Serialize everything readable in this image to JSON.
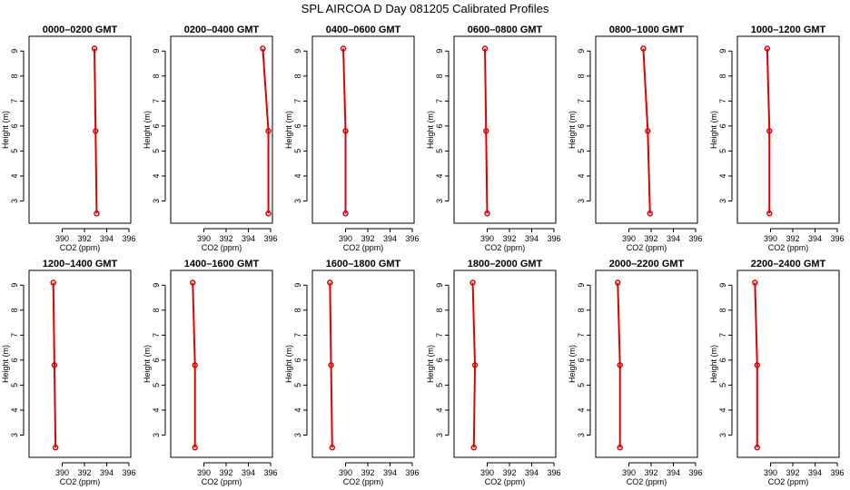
{
  "main_title": "SPL  AIRCOA D  Day 081205  Calibrated Profiles",
  "colors": {
    "series": "#dd0000",
    "axis": "#000000"
  },
  "chart_data": [
    {
      "type": "line",
      "title": "0000–0200 GMT",
      "xlabel": "CO2 (ppm)",
      "ylabel": "Height (m)",
      "xlim": [
        388,
        396
      ],
      "ylim": [
        2.4,
        9.3
      ],
      "xticks": [
        390,
        392,
        394,
        396
      ],
      "yticks": [
        3,
        4,
        5,
        6,
        7,
        8,
        9
      ],
      "x": [
        393.1,
        393.0,
        392.9
      ],
      "y": [
        2.5,
        5.8,
        9.1
      ]
    },
    {
      "type": "line",
      "title": "0200–0400 GMT",
      "xlabel": "CO2 (ppm)",
      "ylabel": "Height (m)",
      "xlim": [
        388,
        396
      ],
      "ylim": [
        2.4,
        9.3
      ],
      "xticks": [
        390,
        392,
        394,
        396
      ],
      "yticks": [
        3,
        4,
        5,
        6,
        7,
        8,
        9
      ],
      "x": [
        395.8,
        395.8,
        395.3
      ],
      "y": [
        2.5,
        5.8,
        9.1
      ]
    },
    {
      "type": "line",
      "title": "0400–0600 GMT",
      "xlabel": "CO2 (ppm)",
      "ylabel": "Height (m)",
      "xlim": [
        388,
        396
      ],
      "ylim": [
        2.4,
        9.3
      ],
      "xticks": [
        390,
        392,
        394,
        396
      ],
      "yticks": [
        3,
        4,
        5,
        6,
        7,
        8,
        9
      ],
      "x": [
        390.0,
        390.0,
        389.8
      ],
      "y": [
        2.5,
        5.8,
        9.1
      ]
    },
    {
      "type": "line",
      "title": "0600–0800 GMT",
      "xlabel": "CO2 (ppm)",
      "ylabel": "Height (m)",
      "xlim": [
        388,
        396
      ],
      "ylim": [
        2.4,
        9.3
      ],
      "xticks": [
        390,
        392,
        394,
        396
      ],
      "yticks": [
        3,
        4,
        5,
        6,
        7,
        8,
        9
      ],
      "x": [
        390.0,
        389.9,
        389.8
      ],
      "y": [
        2.5,
        5.8,
        9.1
      ]
    },
    {
      "type": "line",
      "title": "0800–1000 GMT",
      "xlabel": "CO2 (ppm)",
      "ylabel": "Height (m)",
      "xlim": [
        388,
        396
      ],
      "ylim": [
        2.4,
        9.3
      ],
      "xticks": [
        390,
        392,
        394,
        396
      ],
      "yticks": [
        3,
        4,
        5,
        6,
        7,
        8,
        9
      ],
      "x": [
        391.9,
        391.7,
        391.3
      ],
      "y": [
        2.5,
        5.8,
        9.1
      ]
    },
    {
      "type": "line",
      "title": "1000–1200 GMT",
      "xlabel": "CO2 (ppm)",
      "ylabel": "Height (m)",
      "xlim": [
        388,
        396
      ],
      "ylim": [
        2.4,
        9.3
      ],
      "xticks": [
        390,
        392,
        394,
        396
      ],
      "yticks": [
        3,
        4,
        5,
        6,
        7,
        8,
        9
      ],
      "x": [
        389.9,
        389.9,
        389.7
      ],
      "y": [
        2.5,
        5.8,
        9.1
      ]
    },
    {
      "type": "line",
      "title": "1200–1400 GMT",
      "xlabel": "CO2 (ppm)",
      "ylabel": "Height (m)",
      "xlim": [
        388,
        396
      ],
      "ylim": [
        2.4,
        9.3
      ],
      "xticks": [
        390,
        392,
        394,
        396
      ],
      "yticks": [
        3,
        4,
        5,
        6,
        7,
        8,
        9
      ],
      "x": [
        389.4,
        389.3,
        389.2
      ],
      "y": [
        2.5,
        5.8,
        9.1
      ]
    },
    {
      "type": "line",
      "title": "1400–1600 GMT",
      "xlabel": "CO2 (ppm)",
      "ylabel": "Height (m)",
      "xlim": [
        388,
        396
      ],
      "ylim": [
        2.4,
        9.3
      ],
      "xticks": [
        390,
        392,
        394,
        396
      ],
      "yticks": [
        3,
        4,
        5,
        6,
        7,
        8,
        9
      ],
      "x": [
        389.2,
        389.2,
        389.0
      ],
      "y": [
        2.5,
        5.8,
        9.1
      ]
    },
    {
      "type": "line",
      "title": "1600–1800 GMT",
      "xlabel": "CO2 (ppm)",
      "ylabel": "Height (m)",
      "xlim": [
        388,
        396
      ],
      "ylim": [
        2.4,
        9.3
      ],
      "xticks": [
        390,
        392,
        394,
        396
      ],
      "yticks": [
        3,
        4,
        5,
        6,
        7,
        8,
        9
      ],
      "x": [
        388.8,
        388.7,
        388.6
      ],
      "y": [
        2.5,
        5.8,
        9.1
      ]
    },
    {
      "type": "line",
      "title": "1800–2000 GMT",
      "xlabel": "CO2 (ppm)",
      "ylabel": "Height (m)",
      "xlim": [
        388,
        396
      ],
      "ylim": [
        2.4,
        9.3
      ],
      "xticks": [
        390,
        392,
        394,
        396
      ],
      "yticks": [
        3,
        4,
        5,
        6,
        7,
        8,
        9
      ],
      "x": [
        388.8,
        388.9,
        388.7
      ],
      "y": [
        2.5,
        5.8,
        9.1
      ]
    },
    {
      "type": "line",
      "title": "2000–2200 GMT",
      "xlabel": "CO2 (ppm)",
      "ylabel": "Height (m)",
      "xlim": [
        388,
        396
      ],
      "ylim": [
        2.4,
        9.3
      ],
      "xticks": [
        390,
        392,
        394,
        396
      ],
      "yticks": [
        3,
        4,
        5,
        6,
        7,
        8,
        9
      ],
      "x": [
        389.2,
        389.2,
        389.0
      ],
      "y": [
        2.5,
        5.8,
        9.1
      ]
    },
    {
      "type": "line",
      "title": "2200–2400 GMT",
      "xlabel": "CO2 (ppm)",
      "ylabel": "Height (m)",
      "xlim": [
        388,
        396
      ],
      "ylim": [
        2.4,
        9.3
      ],
      "xticks": [
        390,
        392,
        394,
        396
      ],
      "yticks": [
        3,
        4,
        5,
        6,
        7,
        8,
        9
      ],
      "x": [
        388.8,
        388.8,
        388.6
      ],
      "y": [
        2.5,
        5.8,
        9.1
      ]
    }
  ]
}
